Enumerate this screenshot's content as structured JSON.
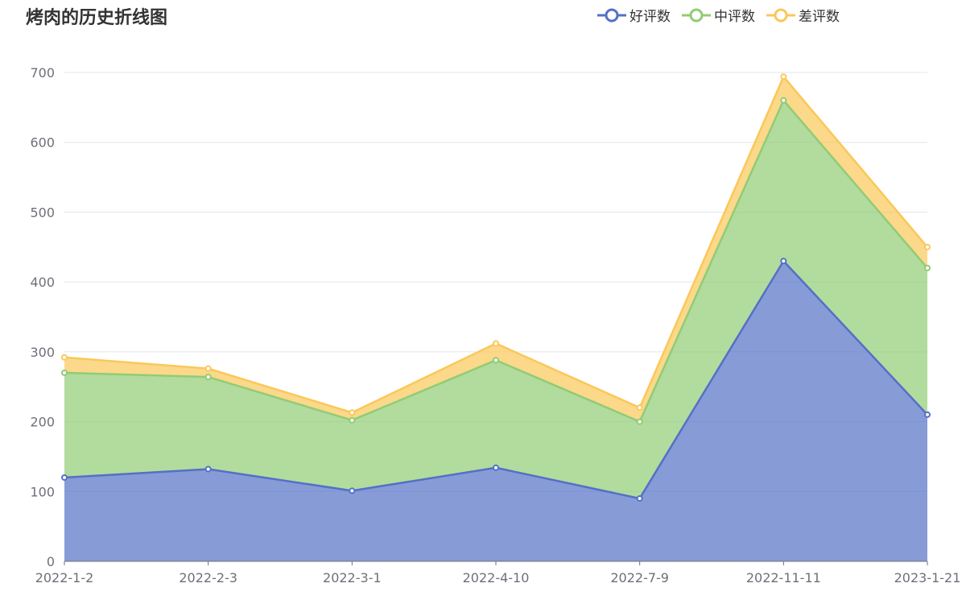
{
  "chart_data": {
    "type": "area",
    "stacked": true,
    "title": "烤肉的历史折线图",
    "categories": [
      "2022-1-2",
      "2022-2-3",
      "2022-3-1",
      "2022-4-10",
      "2022-7-9",
      "2022-11-11",
      "2023-1-21"
    ],
    "series": [
      {
        "name": "好评数",
        "color": "#5470c6",
        "values": [
          120,
          132,
          101,
          134,
          90,
          430,
          210
        ]
      },
      {
        "name": "中评数",
        "color": "#91cc75",
        "values": [
          150,
          132,
          101,
          154,
          110,
          230,
          210
        ]
      },
      {
        "name": "差评数",
        "color": "#fac858",
        "values": [
          22,
          12,
          11,
          24,
          20,
          34,
          30
        ]
      }
    ],
    "ylim": [
      0,
      700
    ],
    "yticks": [
      0,
      100,
      200,
      300,
      400,
      500,
      600,
      700
    ],
    "grid": true,
    "legend_position": "top-right",
    "xlabel": "",
    "ylabel": ""
  }
}
